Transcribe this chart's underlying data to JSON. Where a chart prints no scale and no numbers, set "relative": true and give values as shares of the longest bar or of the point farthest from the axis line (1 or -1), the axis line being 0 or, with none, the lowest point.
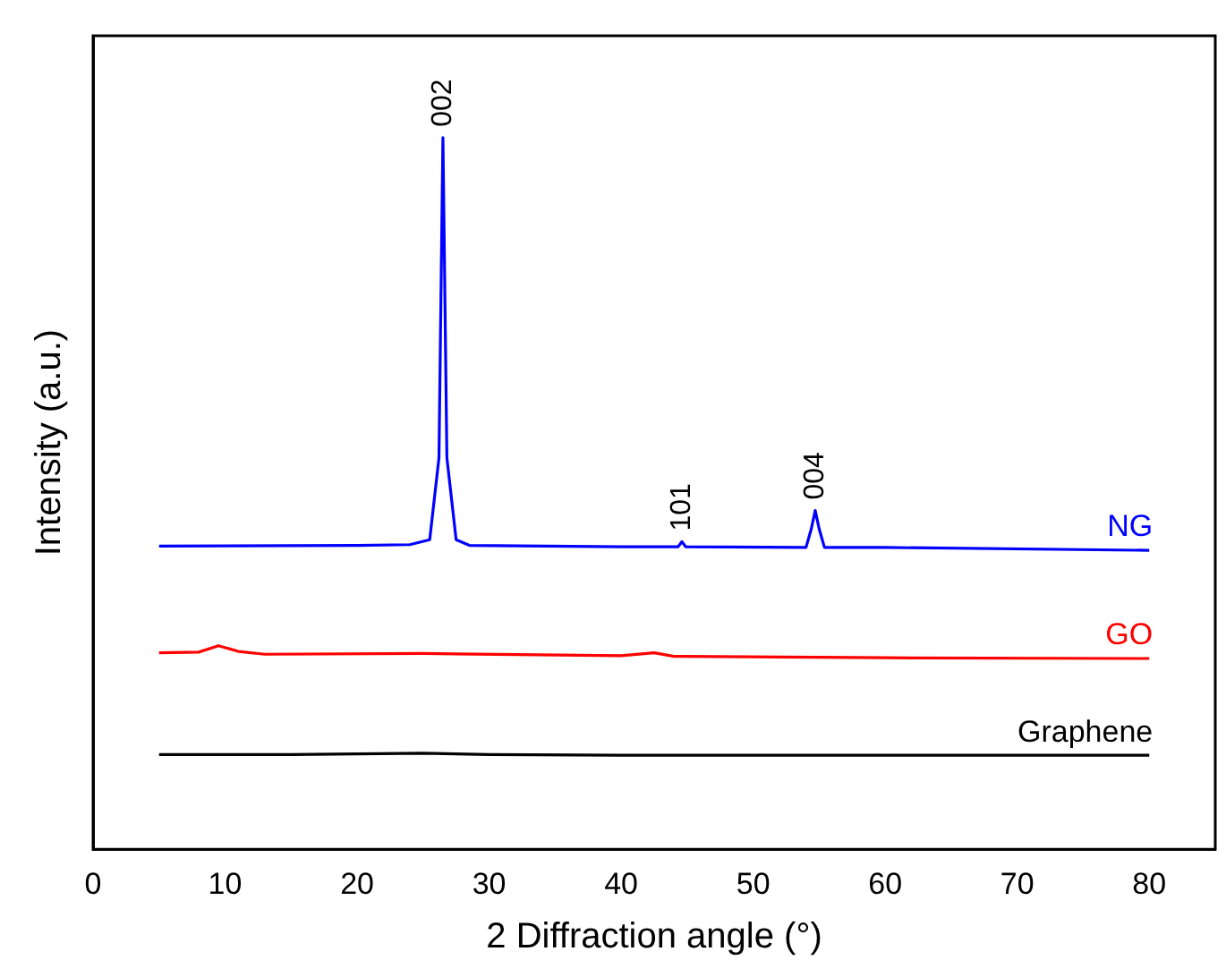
{
  "chart_data": {
    "type": "line",
    "relative": true,
    "xlabel": "2 Diffraction angle (°)",
    "ylabel": "Intensity (a.u.)",
    "xlim": [
      0,
      85
    ],
    "xticks": [
      0,
      10,
      20,
      30,
      40,
      50,
      60,
      70,
      80
    ],
    "grid": false,
    "legend": false,
    "tick_labels": "x",
    "marker": "none",
    "line_style": "solid",
    "series": [
      {
        "name": "NG",
        "color": "#0000ff",
        "x": [
          5,
          20,
          24,
          25.5,
          26.2,
          26.5,
          26.8,
          27.5,
          28.5,
          40,
          44.3,
          44.6,
          44.9,
          54,
          54.4,
          54.7,
          55,
          55.4,
          60,
          80
        ],
        "values": [
          0.426,
          0.427,
          0.428,
          0.435,
          0.55,
          1,
          0.55,
          0.435,
          0.427,
          0.425,
          0.425,
          0.432,
          0.425,
          0.424,
          0.45,
          0.476,
          0.45,
          0.424,
          0.424,
          0.42
        ]
      },
      {
        "name": "GO",
        "color": "#ff0000",
        "x": [
          5,
          8,
          9.5,
          11,
          13,
          25,
          40,
          42.5,
          44,
          60,
          80
        ],
        "values": [
          0.276,
          0.277,
          0.286,
          0.278,
          0.274,
          0.275,
          0.272,
          0.276,
          0.271,
          0.269,
          0.268
        ]
      },
      {
        "name": "Graphene",
        "color": "#000000",
        "x": [
          5,
          15,
          25,
          30,
          40,
          60,
          80
        ],
        "values": [
          0.133,
          0.133,
          0.135,
          0.133,
          0.132,
          0.132,
          0.132
        ]
      }
    ],
    "annotations": [
      {
        "text": "002",
        "x": 26.5,
        "y": 1
      },
      {
        "text": "101",
        "x": 44.6,
        "y": 0.432
      },
      {
        "text": "004",
        "x": 54.7,
        "y": 0.476
      }
    ]
  }
}
